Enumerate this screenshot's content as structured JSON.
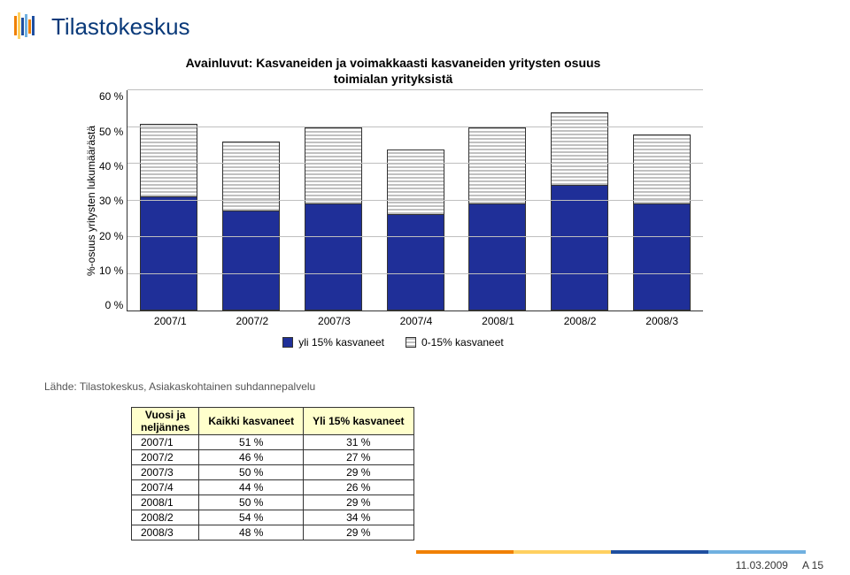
{
  "logo": {
    "text": "Tilastokeskus"
  },
  "chart": {
    "type": "stacked-bar",
    "title_line1": "Avainluvut: Kasvaneiden ja voimakkaasti kasvaneiden yritysten osuus",
    "title_line2": "toimialan yrityksistä",
    "y_axis_label": "%-osuus yritysten lukumäärästä",
    "y_ticks": [
      "60 %",
      "50 %",
      "40 %",
      "30 %",
      "20 %",
      "10 %",
      "0 %"
    ],
    "y_max": 60,
    "categories": [
      "2007/1",
      "2007/2",
      "2007/3",
      "2007/4",
      "2008/1",
      "2008/2",
      "2008/3"
    ],
    "series_lower": {
      "label": "yli 15% kasvaneet",
      "color": "#1f2f98",
      "values": [
        31,
        27,
        29,
        26,
        29,
        34,
        29
      ]
    },
    "series_upper": {
      "label": "0-15% kasvaneet",
      "color_a": "#c0c0c0",
      "color_b": "#ffffff",
      "values": [
        20,
        19,
        21,
        18,
        21,
        20,
        19
      ]
    },
    "grid_color": "#bfbfbf",
    "title_fontsize": 14,
    "label_fontsize": 12
  },
  "source": "Lähde: Tilastokeskus, Asiakaskohtainen suhdannepalvelu",
  "table": {
    "headers": [
      "Vuosi ja neljännes",
      "Kaikki kasvaneet",
      "Yli 15% kasvaneet"
    ],
    "header_bg": "#ffffcc",
    "rows": [
      [
        "2007/1",
        "51 %",
        "31 %"
      ],
      [
        "2007/2",
        "46 %",
        "27 %"
      ],
      [
        "2007/3",
        "50 %",
        "29 %"
      ],
      [
        "2007/4",
        "44 %",
        "26 %"
      ],
      [
        "2008/1",
        "50 %",
        "29 %"
      ],
      [
        "2008/2",
        "54 %",
        "34 %"
      ],
      [
        "2008/3",
        "48 %",
        "29 %"
      ]
    ]
  },
  "footer": {
    "colors": [
      "#f08000",
      "#ffd060",
      "#1f4fa0",
      "#70b0e0"
    ],
    "widths": [
      110,
      110,
      110,
      110
    ],
    "date": "11.03.2009",
    "page": "A 15"
  }
}
